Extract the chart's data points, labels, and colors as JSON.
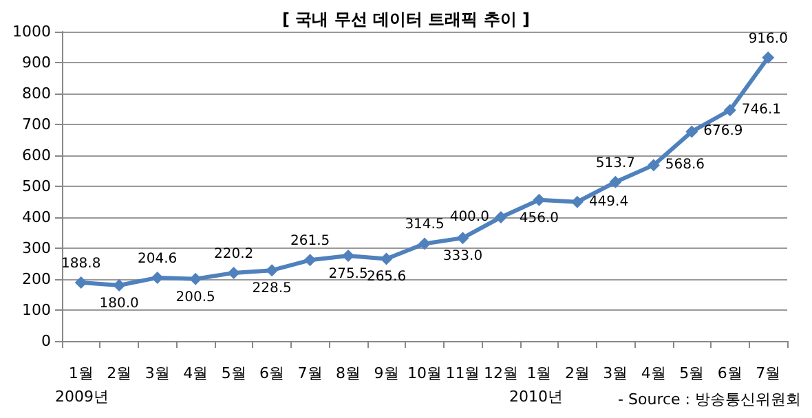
{
  "chart_data": {
    "type": "line",
    "title": "[ 국내 무선 데이터 트래픽 추이 ]",
    "categories": [
      "1월",
      "2월",
      "3월",
      "4월",
      "5월",
      "6월",
      "7월",
      "8월",
      "9월",
      "10월",
      "11월",
      "12월",
      "1월",
      "2월",
      "3월",
      "4월",
      "5월",
      "6월",
      "7월"
    ],
    "series": [
      {
        "color": "#4f81bd",
        "values": [
          188.8,
          180.0,
          204.6,
          200.5,
          220.2,
          228.5,
          261.5,
          275.5,
          265.6,
          314.5,
          333.0,
          400.0,
          456.0,
          449.4,
          513.7,
          568.6,
          676.9,
          746.1,
          916.0
        ]
      }
    ],
    "ylim": [
      0,
      1000
    ],
    "yticks": [
      0,
      100,
      200,
      300,
      400,
      500,
      600,
      700,
      800,
      900,
      1000
    ],
    "value_labels": [
      "188.8",
      "180.0",
      "204.6",
      "200.5",
      "220.2",
      "228.5",
      "261.5",
      "275.5",
      "265.6",
      "314.5",
      "333.0",
      "400.0",
      "456.0",
      "449.4",
      "513.7",
      "568.6",
      "676.9",
      "746.1",
      "916.0"
    ],
    "grid": "y",
    "marker": "diamond",
    "line_style": "solid",
    "annotations": [
      "2009년",
      "2010년",
      "- Source : 방송통신위원회"
    ]
  }
}
